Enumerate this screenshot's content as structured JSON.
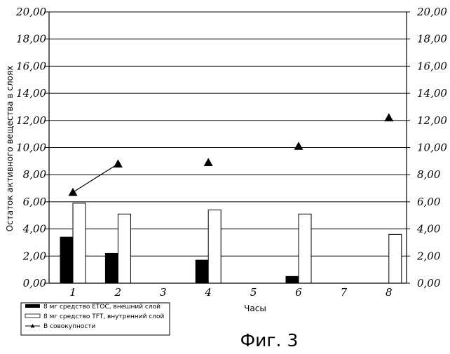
{
  "chart_data": {
    "type": "bar",
    "categories": [
      "1",
      "2",
      "3",
      "4",
      "5",
      "6",
      "7",
      "8"
    ],
    "series": [
      {
        "name": "8 мг средство ЕТОС, внешний слой",
        "kind": "bar",
        "color": "#000000",
        "values": [
          3.4,
          2.2,
          0,
          1.7,
          0,
          0.5,
          0,
          0
        ]
      },
      {
        "name": "8 мг средство TFT, внутренний слой",
        "kind": "bar",
        "color": "#ffffff",
        "values": [
          5.9,
          5.1,
          0,
          5.4,
          0,
          5.1,
          0,
          3.6
        ]
      },
      {
        "name": "В совокупности",
        "kind": "line-triangle",
        "color": "#000000",
        "points": [
          {
            "x": "1",
            "y": 6.7
          },
          {
            "x": "2",
            "y": 8.8
          },
          {
            "x": "4",
            "y": 8.9
          },
          {
            "x": "6",
            "y": 10.1
          },
          {
            "x": "8",
            "y": 12.2
          }
        ],
        "connected_segments": [
          [
            0,
            1
          ]
        ]
      }
    ],
    "ylim": [
      0,
      20
    ],
    "ytick_labels": [
      "0,00",
      "2,00",
      "4,00",
      "6,00",
      "8,00",
      "10,00",
      "12,00",
      "14,00",
      "16,00",
      "18,00",
      "20,00"
    ],
    "xlabel": "Часы",
    "ylabel": "Остаток активного вещества в слоях",
    "legend_position": "bottom-left",
    "grid": "horizontal",
    "caption": "Фиг. 3"
  }
}
